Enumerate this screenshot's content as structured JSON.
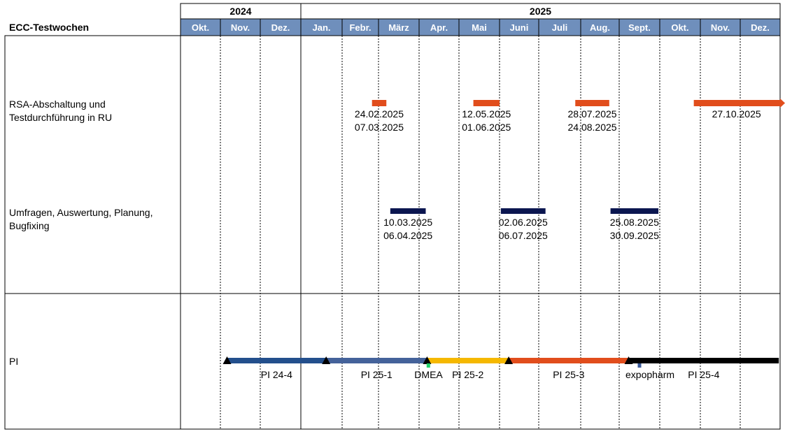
{
  "header": {
    "table_title": "ECC-Testwochen",
    "years": [
      {
        "label": "2024",
        "start": 0,
        "months": 3
      },
      {
        "label": "2025",
        "start": 3,
        "months": 12
      }
    ],
    "months": [
      "Okt.",
      "Nov.",
      "Dez.",
      "Jan.",
      "Febr.",
      "März",
      "Apr.",
      "Mai",
      "Juni",
      "Juli",
      "Aug.",
      "Sept.",
      "Okt.",
      "Nov.",
      "Dez."
    ]
  },
  "rows": {
    "rsa_label_line1": "RSA-Abschaltung und",
    "rsa_label_line2": "Testdurchführung in RU",
    "survey_label_line1": "Umfragen, Auswertung, Planung,",
    "survey_label_line2": "Bugfixing",
    "pi_label": "PI"
  },
  "colors": {
    "header_month_bg": "#6f8fbc",
    "rsa_bar": "#e14d1c",
    "survey_bar": "#0b1650",
    "pi_24_4": "#234f8c",
    "pi_25_1": "#44629a",
    "pi_25_2": "#f5b800",
    "pi_25_3": "#e14d1c",
    "pi_25_4": "#000000",
    "dmea_marker": "#22d36a",
    "expopharm_marker": "#3a5a9a"
  },
  "rsa_bars": [
    {
      "start": "24.02.2025",
      "end": "07.03.2025",
      "open_end": false
    },
    {
      "start": "12.05.2025",
      "end": "01.06.2025",
      "open_end": false
    },
    {
      "start": "28.07.2025",
      "end": "24.08.2025",
      "open_end": false
    },
    {
      "start": "27.10.2025",
      "end": "",
      "open_end": true
    }
  ],
  "survey_bars": [
    {
      "start": "10.03.2025",
      "end": "06.04.2025"
    },
    {
      "start": "02.06.2025",
      "end": "06.07.2025"
    },
    {
      "start": "25.08.2025",
      "end": "30.09.2025"
    }
  ],
  "pi_segments": [
    {
      "label": "PI 24-4",
      "start": "06.11.2024",
      "end": "20.01.2025",
      "color_key": "pi_24_4"
    },
    {
      "label": "PI 25-1",
      "start": "20.01.2025",
      "end": "07.04.2025",
      "color_key": "pi_25_1"
    },
    {
      "label": "PI 25-2",
      "start": "07.04.2025",
      "end": "08.06.2025",
      "color_key": "pi_25_2"
    },
    {
      "label": "PI 25-3",
      "start": "08.06.2025",
      "end": "08.09.2025",
      "color_key": "pi_25_3"
    },
    {
      "label": "PI 25-4",
      "start": "08.09.2025",
      "end": "31.12.2025",
      "color_key": "pi_25_4"
    }
  ],
  "pi_events": [
    {
      "label": "DMEA",
      "date": "08.04.2025",
      "color_key": "dmea_marker"
    },
    {
      "label": "expopharm",
      "date": "16.09.2025",
      "color_key": "expopharm_marker"
    }
  ]
}
